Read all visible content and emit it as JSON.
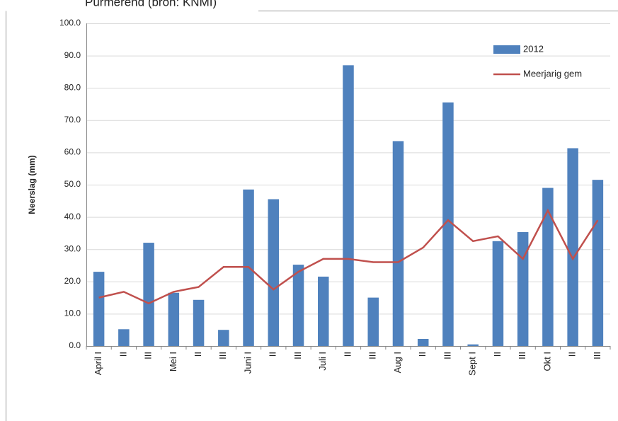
{
  "chart_data": {
    "type": "bar_line",
    "title": "Purmerend (bron: KNMI)",
    "y_label": "Neerslag (mm)",
    "categories": [
      "April I",
      "II",
      "III",
      "Mei I",
      "II",
      "III",
      "Juni I",
      "II",
      "III",
      "Juli I",
      "II",
      "III",
      "Aug I",
      "II",
      "III",
      "Sept I",
      "II",
      "III",
      "Okt I",
      "II",
      "III"
    ],
    "series": [
      {
        "name": "2012",
        "type": "bar",
        "color": "#4f81bd",
        "values": [
          23,
          5.2,
          32,
          16.5,
          14.3,
          5,
          48.5,
          45.5,
          25.2,
          21.5,
          87,
          15,
          63.5,
          2.2,
          75.5,
          0.5,
          32.5,
          35.3,
          49,
          61.3,
          51.5
        ]
      },
      {
        "name": "Meerjarig gem",
        "type": "line",
        "color": "#c0504d",
        "values": [
          15,
          16.8,
          13.2,
          16.8,
          18.3,
          24.5,
          24.5,
          17.5,
          23,
          27,
          27,
          26,
          26,
          30.5,
          39,
          32.5,
          34,
          27,
          42,
          27,
          39
        ]
      }
    ],
    "ylim": [
      0,
      100
    ],
    "yticks": [
      {
        "value": 0,
        "label": "0.0"
      },
      {
        "value": 10,
        "label": "10.0"
      },
      {
        "value": 20,
        "label": "20.0"
      },
      {
        "value": 30,
        "label": "30.0"
      },
      {
        "value": 40,
        "label": "40.0"
      },
      {
        "value": 50,
        "label": "50.0"
      },
      {
        "value": 60,
        "label": "60.0"
      },
      {
        "value": 70,
        "label": "70.0"
      },
      {
        "value": 80,
        "label": "80.0"
      },
      {
        "value": 90,
        "label": "90.0"
      },
      {
        "value": 100,
        "label": "100.0"
      }
    ],
    "grid": true
  }
}
